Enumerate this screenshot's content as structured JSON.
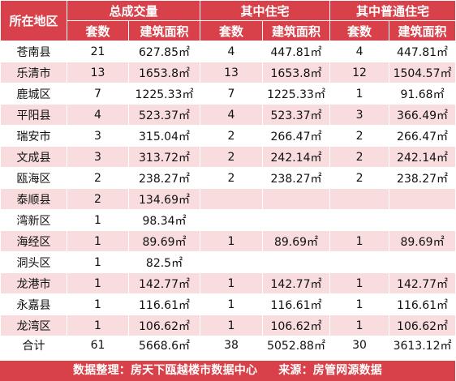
{
  "header": {
    "area_label": "所在地区",
    "groups": [
      "总成交量",
      "其中住宅",
      "其中普通住宅"
    ],
    "sub": [
      "套数",
      "建筑面积",
      "套数",
      "建筑面积",
      "套数",
      "建筑面积"
    ]
  },
  "rows": [
    {
      "area": "苍南县",
      "c1": "21",
      "a1": "627.85㎡",
      "c2": "4",
      "a2": "447.81㎡",
      "c3": "4",
      "a3": "447.81㎡"
    },
    {
      "area": "乐清市",
      "c1": "13",
      "a1": "1653.8㎡",
      "c2": "13",
      "a2": "1653.8㎡",
      "c3": "12",
      "a3": "1504.57㎡"
    },
    {
      "area": "鹿城区",
      "c1": "7",
      "a1": "1225.33㎡",
      "c2": "7",
      "a2": "1225.33㎡",
      "c3": "1",
      "a3": "91.68㎡"
    },
    {
      "area": "平阳县",
      "c1": "4",
      "a1": "523.37㎡",
      "c2": "4",
      "a2": "523.37㎡",
      "c3": "3",
      "a3": "366.49㎡"
    },
    {
      "area": "瑞安市",
      "c1": "3",
      "a1": "315.04㎡",
      "c2": "2",
      "a2": "266.47㎡",
      "c3": "2",
      "a3": "266.47㎡"
    },
    {
      "area": "文成县",
      "c1": "3",
      "a1": "313.72㎡",
      "c2": "2",
      "a2": "242.14㎡",
      "c3": "2",
      "a3": "242.14㎡"
    },
    {
      "area": "瓯海区",
      "c1": "2",
      "a1": "238.27㎡",
      "c2": "2",
      "a2": "238.27㎡",
      "c3": "2",
      "a3": "238.27㎡"
    },
    {
      "area": "泰顺县",
      "c1": "2",
      "a1": "134.69㎡",
      "c2": "",
      "a2": "",
      "c3": "",
      "a3": ""
    },
    {
      "area": "湾新区",
      "c1": "1",
      "a1": "98.34㎡",
      "c2": "",
      "a2": "",
      "c3": "",
      "a3": ""
    },
    {
      "area": "海经区",
      "c1": "1",
      "a1": "89.69㎡",
      "c2": "1",
      "a2": "89.69㎡",
      "c3": "1",
      "a3": "89.69㎡"
    },
    {
      "area": "洞头区",
      "c1": "1",
      "a1": "82.5㎡",
      "c2": "",
      "a2": "",
      "c3": "",
      "a3": ""
    },
    {
      "area": "龙港市",
      "c1": "1",
      "a1": "142.77㎡",
      "c2": "1",
      "a2": "142.77㎡",
      "c3": "1",
      "a3": "142.77㎡"
    },
    {
      "area": "永嘉县",
      "c1": "1",
      "a1": "116.61㎡",
      "c2": "1",
      "a2": "116.61㎡",
      "c3": "1",
      "a3": "116.61㎡"
    },
    {
      "area": "龙湾区",
      "c1": "1",
      "a1": "106.62㎡",
      "c2": "1",
      "a2": "106.62㎡",
      "c3": "1",
      "a3": "106.62㎡"
    }
  ],
  "total": {
    "area": "合计",
    "c1": "61",
    "a1": "5668.6㎡",
    "c2": "38",
    "a2": "5052.88㎡",
    "c3": "30",
    "a3": "3613.12㎡"
  },
  "footer": {
    "compiler": "数据整理：房天下瓯越楼市数据中心",
    "source": "来源：房管网源数据"
  },
  "colors": {
    "header_bg": "#d9414a",
    "stripe": "#f9dcde",
    "header_text": "#ffffff"
  }
}
